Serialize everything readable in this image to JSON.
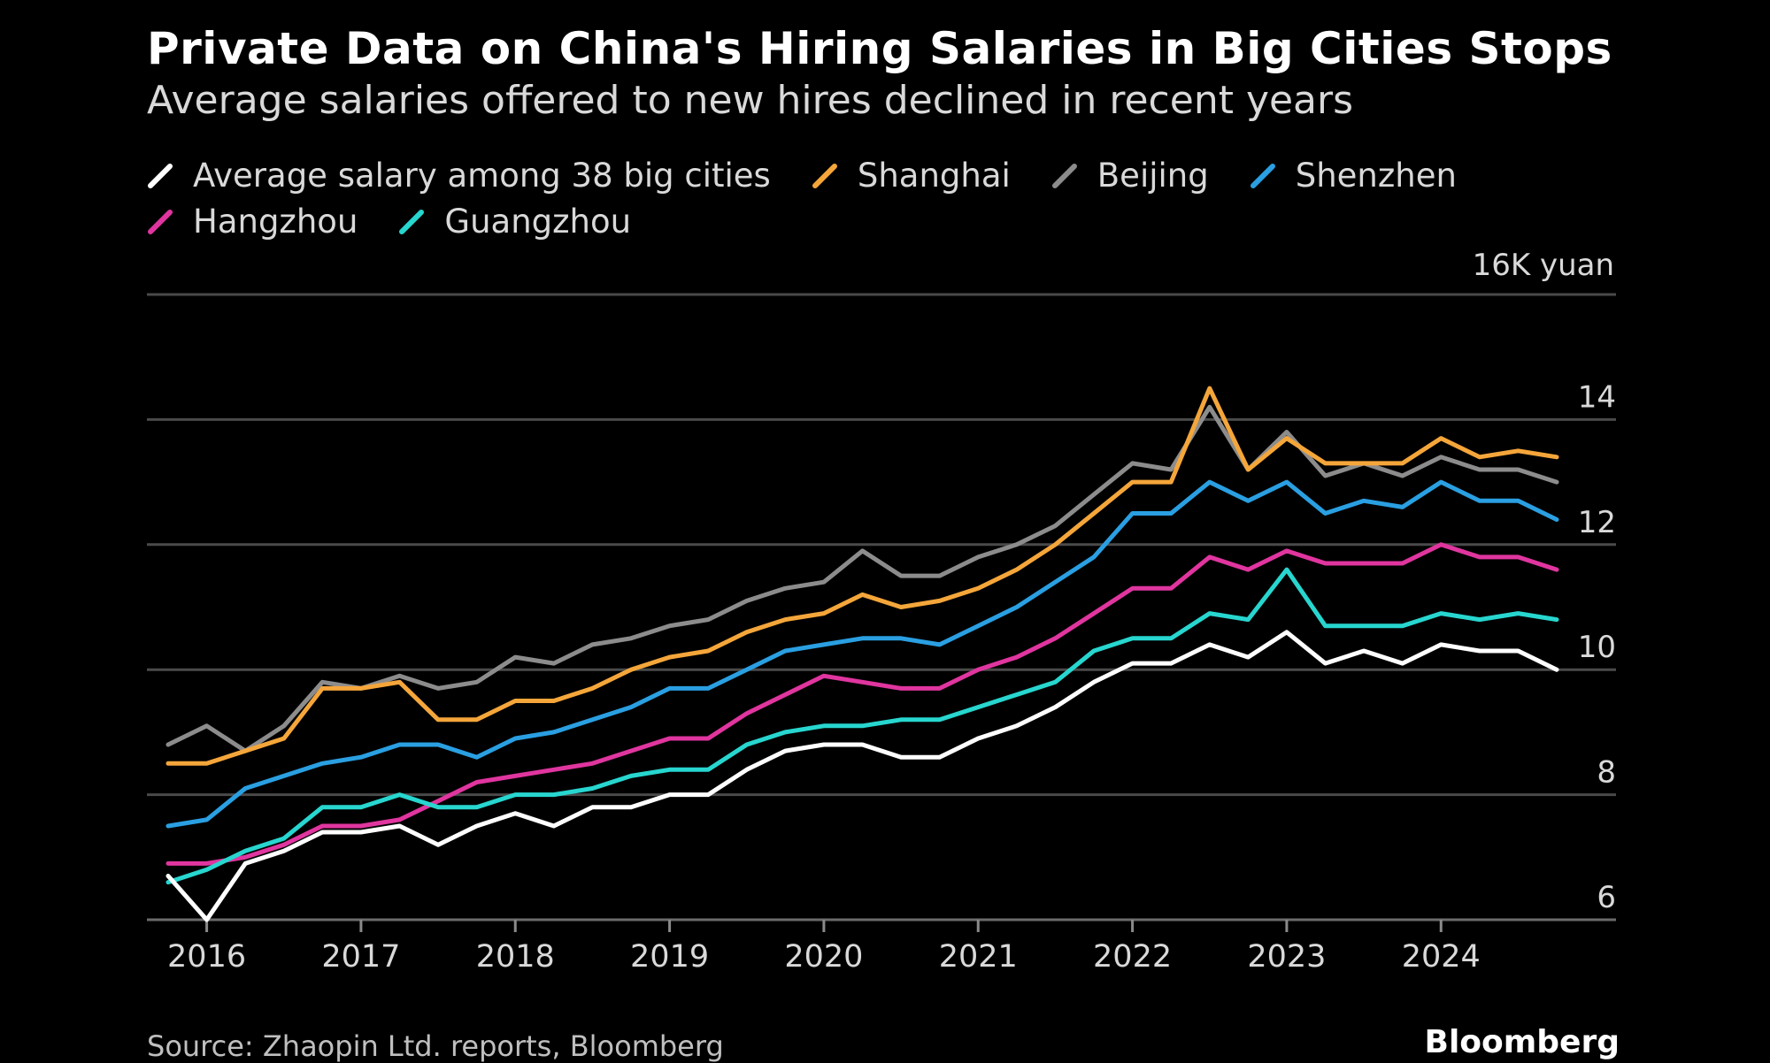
{
  "chart_data": {
    "type": "line",
    "title": "Private Data on China's Hiring Salaries in Big Cities Stops",
    "subtitle": "Average salaries offered to new hires declined in recent years",
    "unit_label": "16K yuan",
    "x": [
      "2015Q4",
      "2016Q1",
      "2016Q2",
      "2016Q3",
      "2016Q4",
      "2017Q1",
      "2017Q2",
      "2017Q3",
      "2017Q4",
      "2018Q1",
      "2018Q2",
      "2018Q3",
      "2018Q4",
      "2019Q1",
      "2019Q2",
      "2019Q3",
      "2019Q4",
      "2020Q1",
      "2020Q2",
      "2020Q3",
      "2020Q4",
      "2021Q1",
      "2021Q2",
      "2021Q3",
      "2021Q4",
      "2022Q1",
      "2022Q2",
      "2022Q3",
      "2022Q4",
      "2023Q1",
      "2023Q2",
      "2023Q3",
      "2023Q4",
      "2024Q1",
      "2024Q2",
      "2024Q3",
      "2024Q4"
    ],
    "x_ticks": [
      "2016",
      "2017",
      "2018",
      "2019",
      "2020",
      "2021",
      "2022",
      "2023",
      "2024"
    ],
    "y_ticks": [
      "6",
      "8",
      "10",
      "12",
      "14"
    ],
    "ylim": [
      6,
      16
    ],
    "grid": true,
    "series": [
      {
        "name": "Average salary among 38 big cities",
        "color": "#ffffff",
        "values": [
          6.7,
          6.0,
          6.9,
          7.1,
          7.4,
          7.4,
          7.5,
          7.2,
          7.5,
          7.7,
          7.5,
          7.8,
          7.8,
          8.0,
          8.0,
          8.4,
          8.7,
          8.8,
          8.8,
          8.6,
          8.6,
          8.9,
          9.1,
          9.4,
          9.8,
          10.1,
          10.1,
          10.4,
          10.2,
          10.6,
          10.1,
          10.3,
          10.1,
          10.4,
          10.3,
          10.3,
          10.0
        ]
      },
      {
        "name": "Shanghai",
        "color": "#f5a63a",
        "values": [
          8.5,
          8.5,
          8.7,
          8.9,
          9.7,
          9.7,
          9.8,
          9.2,
          9.2,
          9.5,
          9.5,
          9.7,
          10.0,
          10.2,
          10.3,
          10.6,
          10.8,
          10.9,
          11.2,
          11.0,
          11.1,
          11.3,
          11.6,
          12.0,
          12.5,
          13.0,
          13.0,
          14.5,
          13.2,
          13.7,
          13.3,
          13.3,
          13.3,
          13.7,
          13.4,
          13.5,
          13.4
        ]
      },
      {
        "name": "Beijing",
        "color": "#8c8c8c",
        "values": [
          8.8,
          9.1,
          8.7,
          9.1,
          9.8,
          9.7,
          9.9,
          9.7,
          9.8,
          10.2,
          10.1,
          10.4,
          10.5,
          10.7,
          10.8,
          11.1,
          11.3,
          11.4,
          11.9,
          11.5,
          11.5,
          11.8,
          12.0,
          12.3,
          12.8,
          13.3,
          13.2,
          14.2,
          13.2,
          13.8,
          13.1,
          13.3,
          13.1,
          13.4,
          13.2,
          13.2,
          13.0
        ]
      },
      {
        "name": "Shenzhen",
        "color": "#2a9fe2",
        "values": [
          7.5,
          7.6,
          8.1,
          8.3,
          8.5,
          8.6,
          8.8,
          8.8,
          8.6,
          8.9,
          9.0,
          9.2,
          9.4,
          9.7,
          9.7,
          10.0,
          10.3,
          10.4,
          10.5,
          10.5,
          10.4,
          10.7,
          11.0,
          11.4,
          11.8,
          12.5,
          12.5,
          13.0,
          12.7,
          13.0,
          12.5,
          12.7,
          12.6,
          13.0,
          12.7,
          12.7,
          12.4
        ]
      },
      {
        "name": "Hangzhou",
        "color": "#e0359f",
        "values": [
          6.9,
          6.9,
          7.0,
          7.2,
          7.5,
          7.5,
          7.6,
          7.9,
          8.2,
          8.3,
          8.4,
          8.5,
          8.7,
          8.9,
          8.9,
          9.3,
          9.6,
          9.9,
          9.8,
          9.7,
          9.7,
          10.0,
          10.2,
          10.5,
          10.9,
          11.3,
          11.3,
          11.8,
          11.6,
          11.9,
          11.7,
          11.7,
          11.7,
          12.0,
          11.8,
          11.8,
          11.6
        ]
      },
      {
        "name": "Guangzhou",
        "color": "#27d6cf",
        "values": [
          6.6,
          6.8,
          7.1,
          7.3,
          7.8,
          7.8,
          8.0,
          7.8,
          7.8,
          8.0,
          8.0,
          8.1,
          8.3,
          8.4,
          8.4,
          8.8,
          9.0,
          9.1,
          9.1,
          9.2,
          9.2,
          9.4,
          9.6,
          9.8,
          10.3,
          10.5,
          10.5,
          10.9,
          10.8,
          11.6,
          10.7,
          10.7,
          10.7,
          10.9,
          10.8,
          10.9,
          10.8
        ]
      }
    ]
  },
  "footer": {
    "source": "Source: Zhaopin Ltd. reports, Bloomberg",
    "brand": "Bloomberg"
  }
}
